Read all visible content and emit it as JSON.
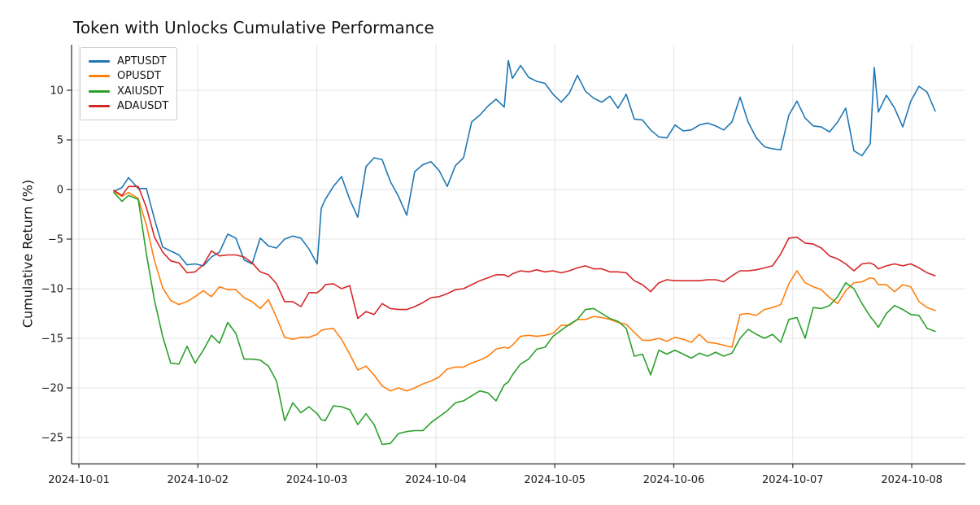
{
  "figure": {
    "title": "Token with Unlocks Cumulative Performance",
    "ylabel": "Cumulative Return (%)"
  },
  "legend": {
    "items": [
      {
        "label": "APTUSDT",
        "color": "#1f77b4"
      },
      {
        "label": "OPUSDT",
        "color": "#ff7f0e"
      },
      {
        "label": "XAIUSDT",
        "color": "#2ca02c"
      },
      {
        "label": "ADAUSDT",
        "color": "#d62728"
      }
    ]
  },
  "colors": {
    "background": "#ffffff",
    "grid": "#e4e4e4",
    "spine": "#2a2a2a",
    "tick_text": "#1a1a1a"
  },
  "chart_data": {
    "type": "line",
    "title": "Token with Unlocks Cumulative Performance",
    "xlabel": "",
    "ylabel": "Cumulative Return (%)",
    "grid": true,
    "legend_position": "upper-left",
    "x_unit": "days since 2024-10-01 00:00",
    "xtick_days": [
      0,
      1,
      2,
      3,
      4,
      5,
      6,
      7
    ],
    "xtick_labels": [
      "2024-10-01",
      "2024-10-02",
      "2024-10-03",
      "2024-10-04",
      "2024-10-05",
      "2024-10-06",
      "2024-10-07",
      "2024-10-08"
    ],
    "yticks": [
      10,
      5,
      0,
      -5,
      -10,
      -15,
      -20,
      -25
    ],
    "xlim": [
      -0.07,
      7.45
    ],
    "ylim": [
      -27.7,
      14.6
    ],
    "x_days": [
      0.294,
      0.362,
      0.417,
      0.499,
      0.567,
      0.636,
      0.704,
      0.772,
      0.841,
      0.909,
      0.977,
      1.046,
      1.114,
      1.182,
      1.251,
      1.319,
      1.388,
      1.456,
      1.524,
      1.593,
      1.661,
      1.729,
      1.798,
      1.866,
      1.934,
      2.003,
      2.037,
      2.071,
      2.139,
      2.208,
      2.276,
      2.344,
      2.413,
      2.481,
      2.549,
      2.618,
      2.686,
      2.755,
      2.823,
      2.891,
      2.96,
      3.028,
      3.096,
      3.165,
      3.233,
      3.301,
      3.37,
      3.438,
      3.506,
      3.575,
      3.609,
      3.643,
      3.712,
      3.78,
      3.848,
      3.917,
      3.985,
      4.053,
      4.122,
      4.19,
      4.258,
      4.327,
      4.395,
      4.463,
      4.532,
      4.6,
      4.668,
      4.737,
      4.805,
      4.874,
      4.942,
      5.01,
      5.079,
      5.147,
      5.215,
      5.284,
      5.352,
      5.42,
      5.489,
      5.557,
      5.625,
      5.694,
      5.762,
      5.83,
      5.899,
      5.967,
      6.035,
      6.104,
      6.172,
      6.24,
      6.309,
      6.377,
      6.445,
      6.514,
      6.582,
      6.651,
      6.685,
      6.719,
      6.787,
      6.856,
      6.924,
      6.992,
      7.061,
      7.129,
      7.197
    ],
    "series": [
      {
        "name": "APTUSDT",
        "color": "#1f77b4",
        "values": [
          -0.2,
          0.2,
          1.2,
          0.1,
          0.1,
          -3.0,
          -5.8,
          -6.2,
          -6.6,
          -7.6,
          -7.5,
          -7.7,
          -6.8,
          -6.3,
          -4.5,
          -4.9,
          -7.1,
          -7.5,
          -4.9,
          -5.7,
          -5.9,
          -5.0,
          -4.7,
          -4.9,
          -6.0,
          -7.5,
          -1.9,
          -1.0,
          0.3,
          1.3,
          -1.0,
          -2.8,
          2.3,
          3.2,
          3.0,
          0.8,
          -0.7,
          -2.6,
          1.8,
          2.5,
          2.8,
          1.9,
          0.3,
          2.4,
          3.2,
          6.8,
          7.5,
          8.4,
          9.1,
          8.3,
          13.0,
          11.2,
          12.5,
          11.3,
          10.9,
          10.7,
          9.6,
          8.8,
          9.7,
          11.5,
          9.9,
          9.2,
          8.8,
          9.4,
          8.2,
          9.6,
          7.1,
          7.0,
          6.0,
          5.3,
          5.2,
          6.5,
          5.9,
          6.0,
          6.5,
          6.7,
          6.4,
          6.0,
          6.8,
          9.3,
          6.8,
          5.2,
          4.3,
          4.1,
          4.0,
          7.5,
          8.9,
          7.2,
          6.4,
          6.3,
          5.8,
          6.8,
          8.2,
          3.9,
          3.4,
          4.6,
          12.3,
          7.8,
          9.5,
          8.2,
          6.3,
          8.9,
          10.4,
          9.8,
          7.9
        ]
      },
      {
        "name": "OPUSDT",
        "color": "#ff7f0e",
        "values": [
          -0.2,
          -0.7,
          -0.3,
          -0.9,
          -3.6,
          -7.2,
          -9.9,
          -11.2,
          -11.6,
          -11.3,
          -10.8,
          -10.2,
          -10.8,
          -9.8,
          -10.1,
          -10.1,
          -10.9,
          -11.3,
          -12.0,
          -11.1,
          -12.9,
          -14.9,
          -15.1,
          -14.9,
          -14.9,
          -14.6,
          -14.2,
          -14.1,
          -14.0,
          -15.1,
          -16.6,
          -18.2,
          -17.8,
          -18.7,
          -19.8,
          -20.3,
          -20.0,
          -20.3,
          -20.0,
          -19.6,
          -19.3,
          -18.9,
          -18.1,
          -17.9,
          -17.9,
          -17.5,
          -17.2,
          -16.8,
          -16.1,
          -15.9,
          -16.0,
          -15.7,
          -14.8,
          -14.7,
          -14.8,
          -14.7,
          -14.5,
          -13.7,
          -13.7,
          -13.1,
          -13.1,
          -12.8,
          -12.9,
          -13.1,
          -13.4,
          -13.6,
          -14.4,
          -15.2,
          -15.2,
          -15.0,
          -15.3,
          -14.9,
          -15.1,
          -15.4,
          -14.6,
          -15.4,
          -15.5,
          -15.7,
          -15.9,
          -12.6,
          -12.5,
          -12.7,
          -12.1,
          -11.9,
          -11.6,
          -9.5,
          -8.2,
          -9.4,
          -9.8,
          -10.1,
          -10.9,
          -11.5,
          -10.2,
          -9.4,
          -9.3,
          -8.9,
          -9.0,
          -9.6,
          -9.6,
          -10.3,
          -9.6,
          -9.8,
          -11.3,
          -11.9,
          -12.2
        ]
      },
      {
        "name": "XAIUSDT",
        "color": "#2ca02c",
        "values": [
          -0.3,
          -1.2,
          -0.6,
          -1.0,
          -6.5,
          -11.2,
          -14.8,
          -17.5,
          -17.6,
          -15.8,
          -17.5,
          -16.2,
          -14.7,
          -15.5,
          -13.4,
          -14.5,
          -17.1,
          -17.1,
          -17.2,
          -17.8,
          -19.3,
          -23.3,
          -21.5,
          -22.5,
          -21.9,
          -22.6,
          -23.2,
          -23.3,
          -21.8,
          -21.9,
          -22.2,
          -23.7,
          -22.6,
          -23.7,
          -25.7,
          -25.6,
          -24.6,
          -24.4,
          -24.3,
          -24.3,
          -23.5,
          -22.9,
          -22.3,
          -21.5,
          -21.3,
          -20.8,
          -20.3,
          -20.5,
          -21.3,
          -19.7,
          -19.4,
          -18.7,
          -17.6,
          -17.1,
          -16.1,
          -15.9,
          -14.8,
          -14.2,
          -13.6,
          -13.1,
          -12.1,
          -12.0,
          -12.5,
          -13.0,
          -13.3,
          -14.0,
          -16.8,
          -16.6,
          -18.7,
          -16.2,
          -16.6,
          -16.2,
          -16.6,
          -17.0,
          -16.5,
          -16.8,
          -16.4,
          -16.8,
          -16.5,
          -15.0,
          -14.1,
          -14.6,
          -15.0,
          -14.6,
          -15.4,
          -13.1,
          -12.9,
          -15.0,
          -11.9,
          -12.0,
          -11.7,
          -10.8,
          -9.4,
          -10.0,
          -11.5,
          -12.8,
          -13.3,
          -13.9,
          -12.5,
          -11.7,
          -12.1,
          -12.6,
          -12.7,
          -14.0,
          -14.3
        ]
      },
      {
        "name": "ADAUSDT",
        "color": "#d62728",
        "values": [
          -0.1,
          -0.6,
          0.3,
          0.3,
          -1.8,
          -4.8,
          -6.3,
          -7.2,
          -7.4,
          -8.4,
          -8.3,
          -7.6,
          -6.2,
          -6.7,
          -6.6,
          -6.6,
          -6.8,
          -7.4,
          -8.3,
          -8.6,
          -9.5,
          -11.3,
          -11.3,
          -11.8,
          -10.4,
          -10.4,
          -10.1,
          -9.6,
          -9.5,
          -10.0,
          -9.7,
          -13.0,
          -12.3,
          -12.6,
          -11.5,
          -12.0,
          -12.1,
          -12.1,
          -11.8,
          -11.4,
          -10.9,
          -10.8,
          -10.5,
          -10.1,
          -10.0,
          -9.6,
          -9.2,
          -8.9,
          -8.6,
          -8.6,
          -8.8,
          -8.5,
          -8.2,
          -8.3,
          -8.1,
          -8.3,
          -8.2,
          -8.4,
          -8.2,
          -7.9,
          -7.7,
          -8.0,
          -8.0,
          -8.3,
          -8.3,
          -8.4,
          -9.2,
          -9.6,
          -10.3,
          -9.4,
          -9.1,
          -9.2,
          -9.2,
          -9.2,
          -9.2,
          -9.1,
          -9.1,
          -9.3,
          -8.7,
          -8.2,
          -8.2,
          -8.1,
          -7.9,
          -7.7,
          -6.5,
          -4.9,
          -4.8,
          -5.4,
          -5.5,
          -5.9,
          -6.7,
          -7.0,
          -7.5,
          -8.2,
          -7.5,
          -7.4,
          -7.6,
          -8.0,
          -7.7,
          -7.5,
          -7.7,
          -7.5,
          -7.9,
          -8.4,
          -8.7
        ]
      }
    ]
  }
}
